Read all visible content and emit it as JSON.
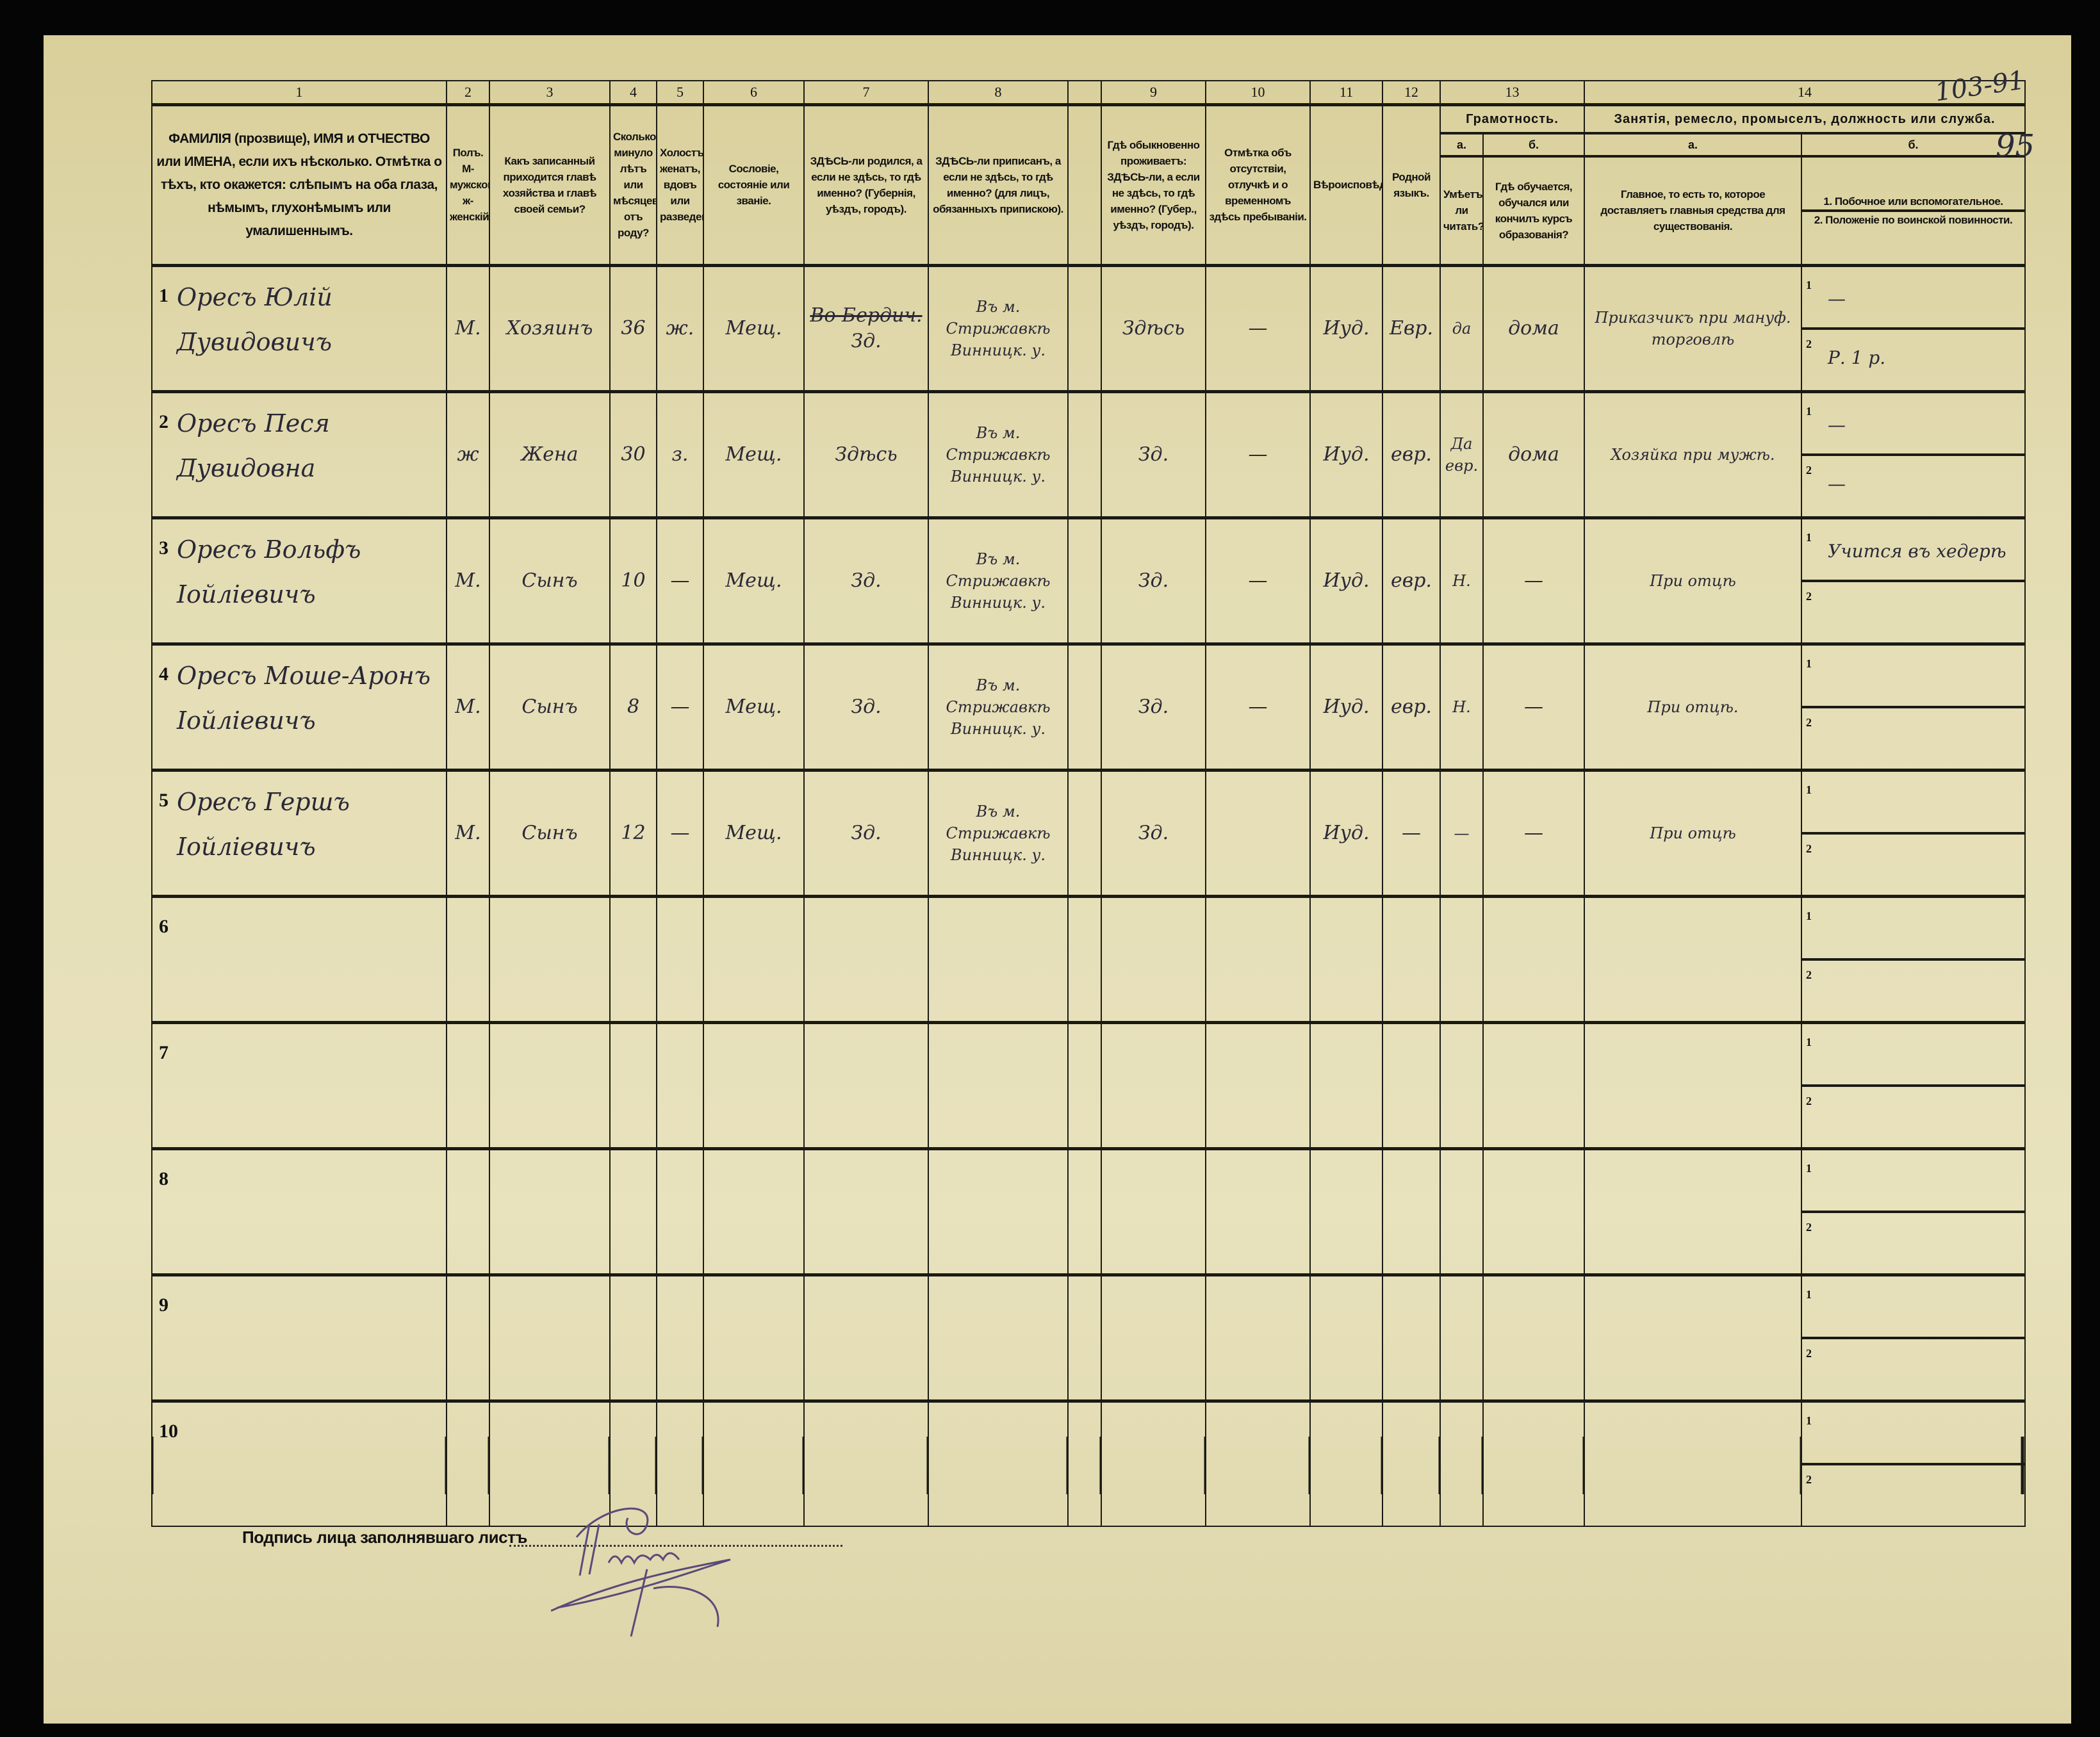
{
  "header": {
    "col_numbers": [
      "1",
      "2",
      "3",
      "4",
      "5",
      "6",
      "7",
      "8",
      "9",
      "10",
      "11",
      "12",
      "13",
      "14"
    ],
    "col1": "ФАМИЛІЯ (прозвище), ИМЯ и ОТЧЕСТВО или ИМЕНА, если ихъ нѣсколько. Отмѣтка о тѣхъ, кто окажется: слѣпымъ на оба глаза, нѣмымъ, глухонѣмымъ или умалишеннымъ.",
    "col2": "Полъ. М-мужской. ж-женскій.",
    "col3": "Какъ записанный приходится главѣ хозяйства и главѣ своей семьи?",
    "col4": "Сколько минуло лѣтъ или мѣсяцевъ отъ роду?",
    "col5": "Холостъ, женатъ, вдовъ или разведенъ.",
    "col6": "Сословіе, состояніе или званіе.",
    "col7": "ЗДѢСЬ-ли родился, а если не здѣсь, то гдѣ именно? (Губернія, уѣздъ, городъ).",
    "col8": "ЗДѢСЬ-ли приписанъ, а если не здѣсь, то гдѣ именно? (для лицъ, обязанныхъ припискою).",
    "col9": "Гдѣ обыкновенно проживаетъ: ЗДѢСЬ-ли, а если не здѣсь, то гдѣ именно? (Губер., уѣздъ, городъ).",
    "col10": "Отмѣтка объ отсутствіи, отлучкѣ и о временномъ здѣсь пребываніи.",
    "col11": "Вѣроисповѣданіе.",
    "col12": "Родной языкъ.",
    "col13_title": "Грамотность.",
    "col13a_letter": "а.",
    "col13b_letter": "б.",
    "col13a": "Умѣетъ-ли читать?",
    "col13b": "Гдѣ обучается, обучался или кончилъ курсъ образованія?",
    "col14_title": "Занятія, ремесло, промыселъ, должность или служба.",
    "col14a_letter": "а.",
    "col14b_letter": "б.",
    "col14a": "Главное, то есть то, которое доставляетъ главныя средства для существованія.",
    "col14b_1": "1. Побочное или вспомогательное.",
    "col14b_2": "2. Положеніе по воинской повинности."
  },
  "rows": [
    {
      "n": "1",
      "name": "Оресъ Юлій Дувидовичъ",
      "sex": "М.",
      "relation": "Хозяинъ",
      "age": "36",
      "marital": "ж.",
      "estate": "Мещ.",
      "birthplace_struck": "Во Бердич.",
      "birthplace": "Зд.",
      "registered": "Въ м. Стрижавкѣ Винницк. у.",
      "residence": "Здѣсь",
      "absence": "—",
      "religion": "Иуд.",
      "language": "Евр.",
      "literate": "да",
      "education": "дома",
      "occupation": "Приказчикъ при мануф. торговлѣ",
      "side": "—",
      "military": "Р. 1 р."
    },
    {
      "n": "2",
      "name": "Оресъ Песя Дувидовна",
      "sex": "ж",
      "relation": "Жена",
      "age": "30",
      "marital": "з.",
      "estate": "Мещ.",
      "birthplace_struck": "",
      "birthplace": "Здѣсь",
      "registered": "Въ м. Стрижавкѣ Винницк. у.",
      "residence": "Зд.",
      "absence": "—",
      "religion": "Иуд.",
      "language": "евр.",
      "literate": "Да евр.",
      "education": "дома",
      "occupation": "Хозяйка при мужѣ.",
      "side": "—",
      "military": "—"
    },
    {
      "n": "3",
      "name": "Оресъ Вольфъ Іойліевичъ",
      "sex": "М.",
      "relation": "Сынъ",
      "age": "10",
      "marital": "—",
      "estate": "Мещ.",
      "birthplace_struck": "",
      "birthplace": "Зд.",
      "registered": "Въ м. Стрижавкѣ Винницк. у.",
      "residence": "Зд.",
      "absence": "—",
      "religion": "Иуд.",
      "language": "евр.",
      "literate": "Н.",
      "education": "—",
      "occupation": "При отцѣ",
      "side": "Учится въ хедерѣ",
      "military": ""
    },
    {
      "n": "4",
      "name": "Оресъ Моше-Аронъ Іойліевичъ",
      "sex": "М.",
      "relation": "Сынъ",
      "age": "8",
      "marital": "—",
      "estate": "Мещ.",
      "birthplace_struck": "",
      "birthplace": "Зд.",
      "registered": "Въ м. Стрижавкѣ Винницк. у.",
      "residence": "Зд.",
      "absence": "—",
      "religion": "Иуд.",
      "language": "евр.",
      "literate": "Н.",
      "education": "—",
      "occupation": "При отцѣ.",
      "side": "",
      "military": ""
    },
    {
      "n": "5",
      "name": "Оресъ Гершъ Іойліевичъ",
      "sex": "М.",
      "relation": "Сынъ",
      "age": "12",
      "marital": "—",
      "estate": "Мещ.",
      "birthplace_struck": "",
      "birthplace": "Зд.",
      "registered": "Въ м. Стрижавкѣ Винницк. у.",
      "residence": "Зд.",
      "absence": "",
      "religion": "Иуд.",
      "language": "—",
      "literate": "—",
      "education": "—",
      "occupation": "При отцѣ",
      "side": "",
      "military": ""
    },
    {
      "n": "6"
    },
    {
      "n": "7"
    },
    {
      "n": "8"
    },
    {
      "n": "9"
    },
    {
      "n": "10"
    }
  ],
  "subrow_labels": [
    "1",
    "2"
  ],
  "footer": {
    "signature_label": "Подпись лица заполнявшаго листъ",
    "signature": "Тищенко"
  },
  "archive_marks": {
    "sheet_range": "103-91",
    "page": "95"
  }
}
